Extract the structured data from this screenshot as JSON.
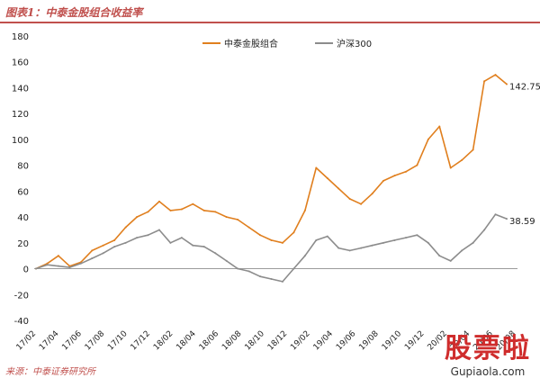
{
  "header": {
    "title": "图表1：中泰金股组合收益率"
  },
  "footer": {
    "source": "来源：中泰证券研究所"
  },
  "watermark": {
    "main": "股票啦",
    "sub": "Gupiaola.com"
  },
  "colors": {
    "series_orange": "#e07f1e",
    "series_gray": "#8c8c8c",
    "header_red": "#c0504d"
  },
  "chart_data": {
    "type": "line",
    "ylim": [
      -40,
      180
    ],
    "yticks": [
      -40,
      -20,
      0,
      20,
      40,
      60,
      80,
      100,
      120,
      140,
      160,
      180
    ],
    "x_tick_labels": [
      "17/02",
      "17/04",
      "17/06",
      "17/08",
      "17/10",
      "17/12",
      "18/02",
      "18/04",
      "18/06",
      "18/08",
      "18/10",
      "18/12",
      "19/02",
      "19/04",
      "19/06",
      "19/08",
      "19/10",
      "19/12",
      "20/02",
      "20/04",
      "20/06",
      "20/08"
    ],
    "legend_position": "top-center",
    "grid": false,
    "series": [
      {
        "name": "中泰金股组合",
        "end_label": "142.75",
        "x": [
          "17/02",
          "17/03",
          "17/04",
          "17/05",
          "17/06",
          "17/07",
          "17/08",
          "17/09",
          "17/10",
          "17/11",
          "17/12",
          "18/01",
          "18/02",
          "18/03",
          "18/04",
          "18/05",
          "18/06",
          "18/07",
          "18/08",
          "18/09",
          "18/10",
          "18/11",
          "18/12",
          "19/01",
          "19/02",
          "19/03",
          "19/04",
          "19/05",
          "19/06",
          "19/07",
          "19/08",
          "19/09",
          "19/10",
          "19/11",
          "19/12",
          "20/01",
          "20/02",
          "20/03",
          "20/04",
          "20/05",
          "20/06",
          "20/07",
          "20/08"
        ],
        "values": [
          0,
          4,
          10,
          2,
          5,
          14,
          18,
          22,
          32,
          40,
          44,
          52,
          45,
          46,
          50,
          45,
          44,
          40,
          38,
          32,
          26,
          22,
          20,
          28,
          45,
          78,
          70,
          62,
          54,
          50,
          58,
          68,
          72,
          75,
          80,
          100,
          110,
          78,
          84,
          92,
          145,
          150,
          142.75
        ]
      },
      {
        "name": "沪深300",
        "end_label": "38.59",
        "x": [
          "17/02",
          "17/03",
          "17/04",
          "17/05",
          "17/06",
          "17/07",
          "17/08",
          "17/09",
          "17/10",
          "17/11",
          "17/12",
          "18/01",
          "18/02",
          "18/03",
          "18/04",
          "18/05",
          "18/06",
          "18/07",
          "18/08",
          "18/09",
          "18/10",
          "18/11",
          "18/12",
          "19/01",
          "19/02",
          "19/03",
          "19/04",
          "19/05",
          "19/06",
          "19/07",
          "19/08",
          "19/09",
          "19/10",
          "19/11",
          "19/12",
          "20/01",
          "20/02",
          "20/03",
          "20/04",
          "20/05",
          "20/06",
          "20/07",
          "20/08"
        ],
        "values": [
          0,
          3,
          2,
          1,
          4,
          8,
          12,
          17,
          20,
          24,
          26,
          30,
          20,
          24,
          18,
          17,
          12,
          6,
          0,
          -2,
          -6,
          -8,
          -10,
          0,
          10,
          22,
          25,
          16,
          14,
          16,
          18,
          20,
          22,
          24,
          26,
          20,
          10,
          6,
          14,
          20,
          30,
          42,
          38.59
        ]
      }
    ]
  }
}
